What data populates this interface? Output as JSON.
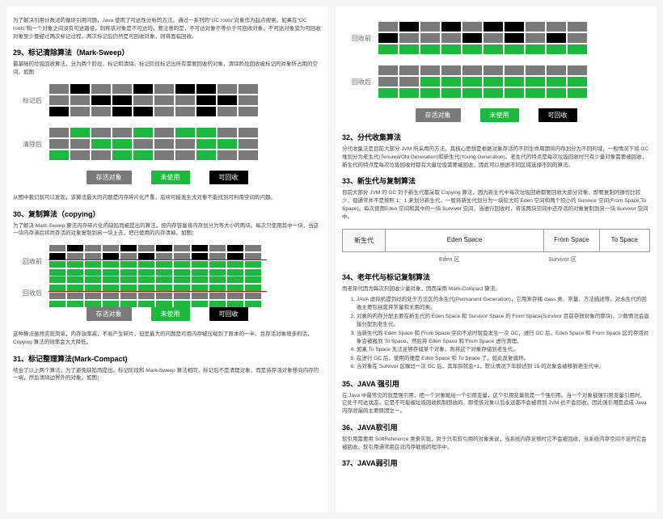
{
  "left": {
    "intro": "为了解决引用计数法的循环引用问题，Java 使用了可达性分析的方法。通过一系列的\"GC roots\"对象作为起点搜索。如果在\"GC roots\"和一个对象之间没有可达路径，则称该对象是不可达的。要注意的是，不可达对象不等价于可回收对象，不可达对象变为可回收对象至少要经过两次标记过程，两次标记后仍然是可回收对象，则将面临回收。",
    "h29": "29、标记清除算法（Mark-Sweep）",
    "p29": "最基础的垃圾回收算法，分为两个阶段，标记和清除。标记阶段标记出所有需要回收的对象，清除阶段回收被标记的对象所占用的空间。如图",
    "label_mark": "标记后",
    "label_clear": "清除后",
    "legend_live": "存活对象",
    "legend_unused": "未使用",
    "legend_recycle": "可回收",
    "p29b": "从图中我们就可以发现，该算法最大的问题是内存碎片化严重，后续可能发生大对象不能找到可利用空间的问题。",
    "h30": "30、复制算法（copying）",
    "p30": "为了解决 Mark-Sweep 算法内存碎片化的缺陷而被提出的算法。按内存容量将内存划分为等大小的两块。每次只使用其中一块，当这一块内存满后将尚存活的对象复制到另一块上去，把已使用的内存清掉。如图：",
    "label_before": "回收前",
    "label_after": "回收后",
    "p30b": "这种算法虽然实现简单，内存效率高，不易产生碎片，但是最大的问题是可用内存被压缩到了原本的一半。且存活对象增多的话，Copying 算法的效率会大大降低。",
    "h31": "31、标记整理算法(Mark-Compact)",
    "p31": "结合了以上两个算法，为了避免缺陷而提出。标记阶段和 Mark-Sweep 算法相同，标记后不是清理对象，而是将存活对象移向内存的一端，然后清除边界外的对象。如图："
  },
  "right": {
    "label_before": "回收前",
    "label_after": "回收后",
    "legend_live": "存活对象",
    "legend_unused": "未使用",
    "legend_recycle": "可回收",
    "h32": "32、分代收集算法",
    "p32": "分代收集法是目前大部分 JVM 所采用的方法，其核心思想是根据对象存活的不同生命周期将内存划分为不同的域，一般情况下将 GC 堆划分为老生代(Tenured/Old Generation)和新生代(Young Generation)。老生代的特点是每次垃圾回收时只有少量对象需要被回收，新生代的特点是每次垃圾回收时都有大量垃圾需要被回收，因此可以根据不同区域选择不同的算法。",
    "h33": "33、新生代与复制算法",
    "p33": "目前大部分 JVM 的 GC 对于新生代都采取 Copying 算法，因为新生代中每次垃圾回收都要回收大部分对象，即要复制的操作比较少，但通常并不是按照 1：1 来划分新生代，一般将新生代划分为一块较大的 Eden 空间和两个较小的 Survivor 空间(From Space,To Space)。每次使用Eden 空间和其中的一块 Survivor 空间，当进行回收时，将该两块空间中还存活的对象复制到另一块 Survivor 空间中。",
    "table_young": "新生代",
    "table_eden": "Eden Space",
    "table_from": "From Space",
    "table_to": "To Space",
    "sub_eden": "Eden 区",
    "sub_surv": "Survivor 区",
    "h34": "34、老年代与标记复制算法",
    "p34": "而老年代因为每次只回收少量对象，因而采用 Mark-Compact 算法。",
    "list": [
      "JAVA 虚拟机提到过的处于方法区的永生代(Permanent Generation)，它用来存储 class 类、常量、方法描述等。对永生代的回收主要包括废弃常量和无用的类。",
      "对象的内存分配主要在新生代的 Eden Space 和 Survivor Space 的 From Space(Survivor 目前存放对象的那块)，少数情况会直接分配到老生代。",
      "当新生代的 Eden Space 和 From Space 空间不足时就会发生一次 GC，进行 GC 后，Eden Space 和 From Space 区的存活对象会被搬到 To Space，然后将 Eden Space 和 From Space 进行清理。",
      "如果 To Space 无法足够存储某个对象，则将这个对象存储到老生代。",
      "在进行 GC 后，使用的便是 Eden Space 和 To Space 了，如此反复循环。",
      "当对象在 Survivor 区躲过一次 GC 后，其年龄就会+1，默认情况下年龄达到 15 的对象会被移到老生代中。"
    ],
    "h35": "35、JAVA 强引用",
    "p35": "在 Java 中最常见的就是强引用，把一个对象赋给一个引用变量，这个引用变量就是一个强引用。当一个对象被强引用变量引用时，它处于可达状态，它是不可能被垃圾回收机制回收的，即使该对象以后永远都不会被用到 JVM 也不会回收。因此强引用是造成 Java 内存泄漏的主要原因之一。",
    "h36": "36、JAVA软引用",
    "p36": "软引用需要用 SoftReference 类来实现，对于只有软引用的对象来说，当系统内存足够时它不会被回收，当系统内存空间不足时它会被回收。软引用通常用在对内存敏感的程序中。",
    "h37": "37、JAVA弱引用"
  },
  "colors": {
    "gray": "#7a7a7a",
    "black": "#000000",
    "green": "#1db93f",
    "red": "#d00000"
  },
  "grids": {
    "mark": [
      [
        "gray",
        "black",
        "gray",
        "gray",
        "black",
        "gray",
        "black",
        "black",
        "gray",
        "gray"
      ],
      [
        "gray",
        "gray",
        "black",
        "black",
        "gray",
        "gray",
        "gray",
        "black",
        "black",
        "gray"
      ],
      [
        "black",
        "gray",
        "gray",
        "black",
        "black",
        "gray",
        "gray",
        "black",
        "gray",
        "gray"
      ]
    ],
    "clear": [
      [
        "gray",
        "green",
        "gray",
        "gray",
        "green",
        "gray",
        "green",
        "green",
        "gray",
        "gray"
      ],
      [
        "gray",
        "gray",
        "green",
        "green",
        "gray",
        "gray",
        "gray",
        "green",
        "green",
        "gray"
      ],
      [
        "green",
        "gray",
        "gray",
        "green",
        "green",
        "gray",
        "gray",
        "green",
        "gray",
        "gray"
      ]
    ],
    "copy_before": [
      [
        "gray",
        "black",
        "gray",
        "gray",
        "black",
        "gray",
        "black",
        "gray",
        "black",
        "gray",
        "black",
        "gray"
      ],
      [
        "black",
        "gray",
        "gray",
        "black",
        "gray",
        "black",
        "gray",
        "gray",
        "black",
        "gray",
        "black",
        "gray"
      ],
      [
        "green",
        "green",
        "green",
        "green",
        "green",
        "green",
        "green",
        "green",
        "green",
        "green",
        "green",
        "green"
      ],
      [
        "green",
        "green",
        "green",
        "green",
        "green",
        "green",
        "green",
        "green",
        "green",
        "green",
        "green",
        "green"
      ]
    ],
    "copy_after": [
      [
        "green",
        "green",
        "green",
        "green",
        "green",
        "green",
        "green",
        "green",
        "green",
        "green",
        "green",
        "green"
      ],
      [
        "green",
        "green",
        "green",
        "green",
        "green",
        "green",
        "green",
        "green",
        "green",
        "green",
        "green",
        "green"
      ],
      [
        "gray",
        "gray",
        "gray",
        "gray",
        "gray",
        "gray",
        "gray",
        "gray",
        "gray",
        "gray",
        "gray",
        "gray"
      ],
      [
        "green",
        "green",
        "green",
        "green",
        "green",
        "green",
        "green",
        "green",
        "green",
        "green",
        "green",
        "green"
      ]
    ],
    "right_before": [
      [
        "gray",
        "black",
        "gray",
        "black",
        "gray",
        "black",
        "black",
        "gray",
        "gray",
        "gray"
      ],
      [
        "black",
        "gray",
        "gray",
        "gray",
        "black",
        "gray",
        "black",
        "gray",
        "black",
        "gray"
      ],
      [
        "green",
        "green",
        "green",
        "green",
        "green",
        "green",
        "green",
        "green",
        "green",
        "green"
      ]
    ],
    "right_after": [
      [
        "gray",
        "gray",
        "gray",
        "gray",
        "gray",
        "gray",
        "gray",
        "gray",
        "gray",
        "gray"
      ],
      [
        "gray",
        "gray",
        "green",
        "green",
        "green",
        "green",
        "green",
        "green",
        "green",
        "green"
      ],
      [
        "green",
        "green",
        "green",
        "green",
        "green",
        "green",
        "green",
        "green",
        "green",
        "green"
      ]
    ]
  }
}
